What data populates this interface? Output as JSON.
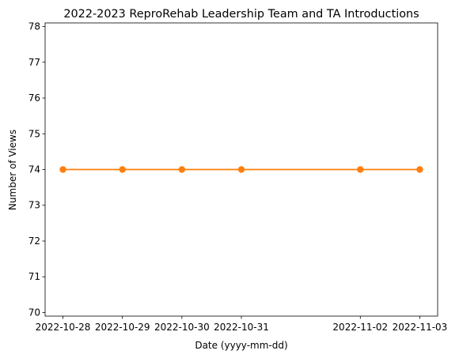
{
  "chart_data": {
    "type": "line",
    "title": "2022-2023 ReproRehab Leadership Team and TA Introductions",
    "xlabel": "Date (yyyy-mm-dd)",
    "ylabel": "Number of Views",
    "x": [
      "2022-10-28",
      "2022-10-29",
      "2022-10-30",
      "2022-10-31",
      "2022-11-02",
      "2022-11-03"
    ],
    "series": [
      {
        "values": [
          74,
          74,
          74,
          74,
          74,
          74
        ],
        "color": "#ff7f0e"
      }
    ],
    "ylim": [
      69.9,
      78.1
    ],
    "yticks": [
      70,
      71,
      72,
      73,
      74,
      75,
      76,
      77,
      78
    ],
    "xticks": [
      "2022-10-28",
      "2022-10-29",
      "2022-10-30",
      "2022-10-31",
      "2022-11-02",
      "2022-11-03"
    ],
    "grid": false,
    "legend": false
  }
}
